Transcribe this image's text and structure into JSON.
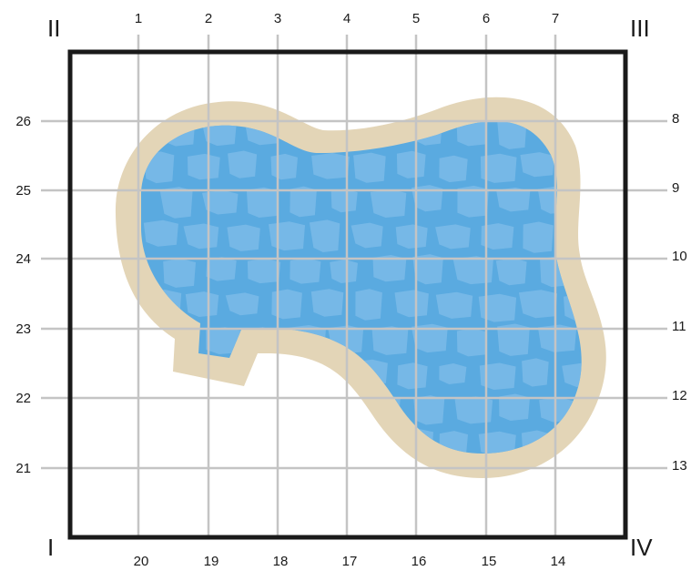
{
  "corners": {
    "top_left": "II",
    "top_right": "III",
    "bottom_left": "I",
    "bottom_right": "IV"
  },
  "top_labels": [
    "1",
    "2",
    "3",
    "4",
    "5",
    "6",
    "7"
  ],
  "bottom_labels": [
    "20",
    "19",
    "18",
    "17",
    "16",
    "15",
    "14"
  ],
  "left_labels": [
    "26",
    "25",
    "24",
    "23",
    "22",
    "21"
  ],
  "right_labels": [
    "8",
    "9",
    "10",
    "11",
    "12",
    "13"
  ],
  "colors": {
    "frame": "#1a1a1a",
    "grid": "#c4c4c4",
    "pool_water": "#5aaae0",
    "pool_stone": "#7cbbe8",
    "pool_deck": "#e3d5b7"
  }
}
